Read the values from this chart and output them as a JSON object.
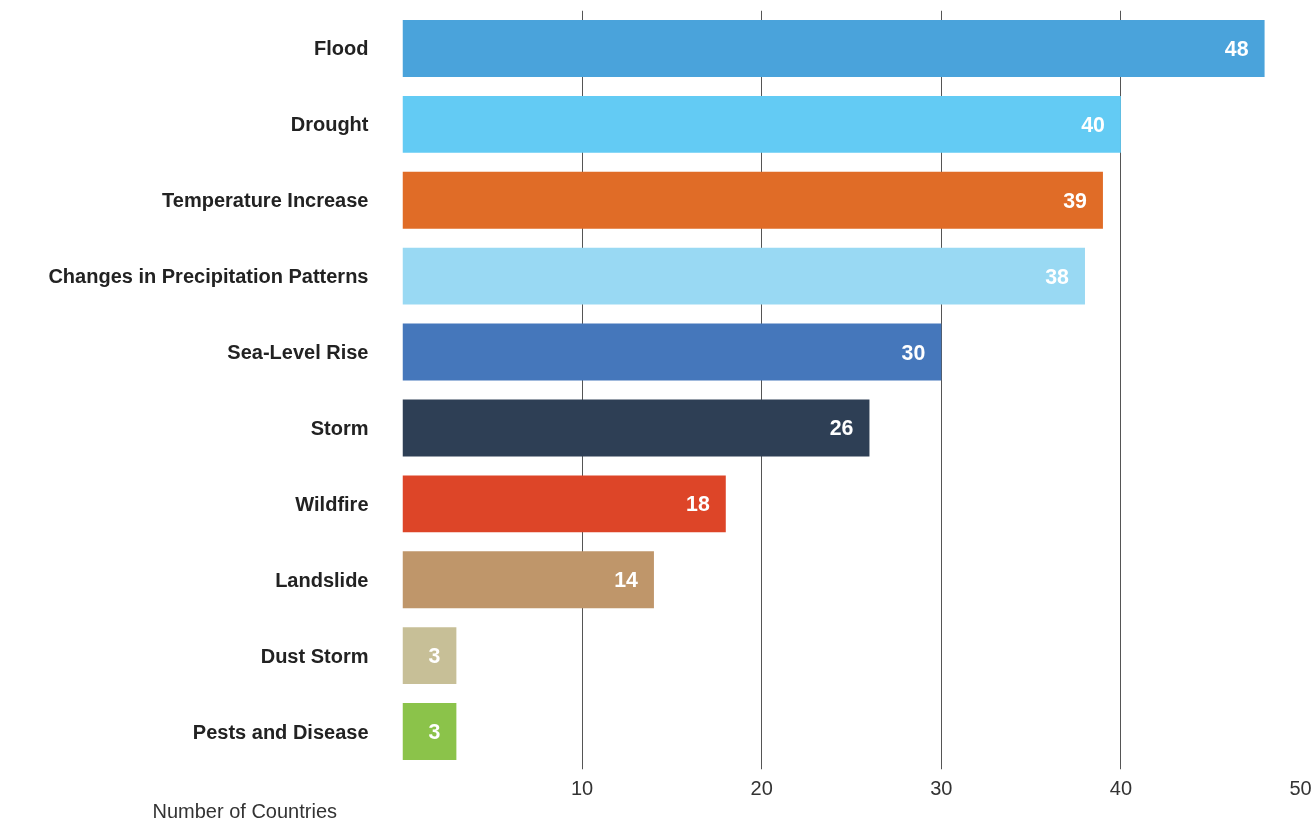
{
  "chart_data": {
    "type": "bar",
    "orientation": "horizontal",
    "xlabel": "Number of Countries",
    "categories": [
      "Flood",
      "Drought",
      "Temperature Increase",
      "Changes in Precipitation Patterns",
      "Sea-Level Rise",
      "Storm",
      "Wildfire",
      "Landslide",
      "Dust Storm",
      "Pests and Disease"
    ],
    "values": [
      48,
      40,
      39,
      38,
      30,
      26,
      18,
      14,
      3,
      3
    ],
    "colors": [
      "#4aa3db",
      "#63cbf4",
      "#e06c27",
      "#99d9f3",
      "#4577bb",
      "#2e3f55",
      "#dd4528",
      "#bf966a",
      "#c7bf97",
      "#8bc34a"
    ],
    "xlim": [
      0,
      50
    ],
    "xticks": [
      10,
      20,
      30,
      40,
      50
    ],
    "grid": "x",
    "data_labels": true
  }
}
